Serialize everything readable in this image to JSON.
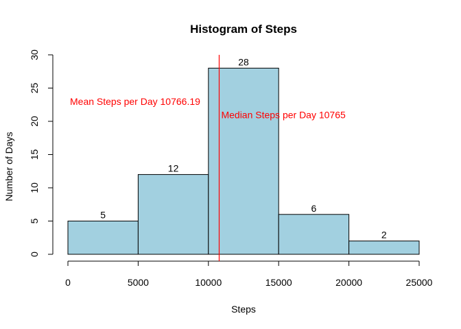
{
  "chart_data": {
    "type": "bar",
    "title": "Histogram of Steps",
    "xlabel": "Steps",
    "ylabel": "Number of Days",
    "bins": [
      {
        "start": 0,
        "end": 5000,
        "count": 5
      },
      {
        "start": 5000,
        "end": 10000,
        "count": 12
      },
      {
        "start": 10000,
        "end": 15000,
        "count": 28
      },
      {
        "start": 15000,
        "end": 20000,
        "count": 6
      },
      {
        "start": 20000,
        "end": 25000,
        "count": 2
      }
    ],
    "xlim": [
      0,
      25000
    ],
    "ylim": [
      0,
      30
    ],
    "xticks": [
      0,
      5000,
      10000,
      15000,
      20000,
      25000
    ],
    "yticks": [
      0,
      5,
      10,
      15,
      20,
      25,
      30
    ],
    "bar_color": "#a2d0e0",
    "line_color": "#ff0000",
    "vline_x": 10766.19,
    "annotations": [
      {
        "text": "Mean Steps per Day 10766.19",
        "x": 0,
        "y": 23,
        "color": "#ff0000"
      },
      {
        "text": "Median Steps per Day 10765",
        "x": 10765,
        "y": 21,
        "color": "#ff0000"
      }
    ],
    "grid": false,
    "legend": "none"
  }
}
